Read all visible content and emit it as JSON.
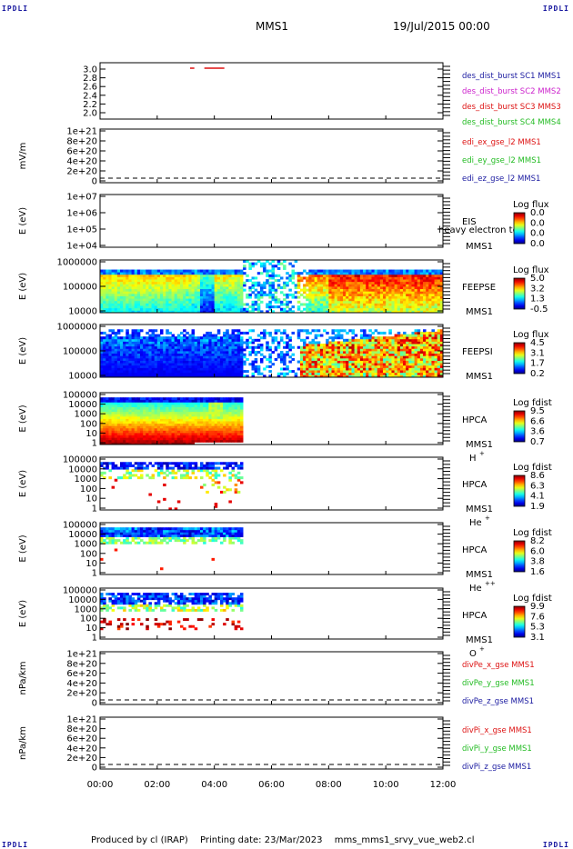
{
  "corner_label": "IPDLI",
  "header": {
    "title": "MMS1",
    "date": "19/Jul/2015 00:00"
  },
  "footer": {
    "produced_by": "Produced by cl (IRAP)",
    "printing_date": "Printing date: 23/Mar/2023",
    "script": "mms_mms1_srvy_vue_web2.cl"
  },
  "colors": {
    "axis": "#000000",
    "dashed": "#000000",
    "sc1": "#1a1aa0",
    "sc2": "#cc22cc",
    "sc3": "#dd1111",
    "sc4": "#22bb22",
    "burst_mark": "#dd1111"
  },
  "chart_data": {
    "type": "stacked-timeseries",
    "x_axis": {
      "ticks": [
        "00:00",
        "02:00",
        "04:00",
        "06:00",
        "08:00",
        "10:00",
        "12:00"
      ],
      "range_hours": [
        0,
        12
      ]
    },
    "panels": [
      {
        "id": "burst",
        "ylabel": "",
        "yticks": [
          "3.0",
          "2.8",
          "2.6",
          "2.4",
          "2.2",
          "2.0"
        ],
        "legend": [
          {
            "label": "des_dist_burst SC1 MMS1",
            "color": "#1a1aa0"
          },
          {
            "label": "des_dist_burst SC2 MMS2",
            "color": "#cc22cc"
          },
          {
            "label": "des_dist_burst SC3 MMS3",
            "color": "#dd1111"
          },
          {
            "label": "des_dist_burst SC4 MMS4",
            "color": "#22bb22"
          }
        ],
        "bursts_hours": [
          [
            3.15,
            3.3
          ],
          [
            3.65,
            4.35
          ]
        ]
      },
      {
        "id": "efield",
        "ylabel": "mV/m",
        "yticks": [
          "1e+21",
          "8e+20",
          "6e+20",
          "4e+20",
          "2e+20",
          "0"
        ],
        "legend": [
          {
            "label": "edi_ex_gse_l2 MMS1",
            "color": "#dd1111"
          },
          {
            "label": "edi_ey_gse_l2 MMS1",
            "color": "#22bb22"
          },
          {
            "label": "edi_ez_gse_l2 MMS1",
            "color": "#1a1aa0"
          }
        ]
      },
      {
        "id": "eis",
        "ylabel": "E (eV)",
        "yticks": [
          "1e+07",
          "1e+06",
          "1e+05",
          "1e+04"
        ],
        "instrument": "EIS",
        "instrument_sub": "MMS1",
        "extra_label": "heavy electron to",
        "colorbar_title": "Log flux",
        "colorbar_ticks": [
          "0.0",
          "0.0",
          "0.0",
          "0.0"
        ]
      },
      {
        "id": "feepse",
        "ylabel": "E (eV)",
        "yticks": [
          "1000000",
          "100000",
          "10000"
        ],
        "instrument": "FEEPSE",
        "instrument_sub": "MMS1",
        "colorbar_title": "Log flux",
        "colorbar_ticks": [
          "5.0",
          "3.2",
          "1.3",
          "-0.5"
        ]
      },
      {
        "id": "feepsi",
        "ylabel": "E (eV)",
        "yticks": [
          "1000000",
          "100000",
          "10000"
        ],
        "instrument": "FEEPSI",
        "instrument_sub": "MMS1",
        "colorbar_title": "Log flux",
        "colorbar_ticks": [
          "4.5",
          "3.1",
          "1.7",
          "0.2"
        ]
      },
      {
        "id": "hpca_h",
        "ylabel": "E (eV)",
        "yticks": [
          "100000",
          "10000",
          "1000",
          "100",
          "10",
          "1"
        ],
        "instrument": "HPCA",
        "instrument_sub": "MMS1",
        "species": "H",
        "species_sup": "+",
        "colorbar_title": "Log fdist",
        "colorbar_ticks": [
          "9.5",
          "6.6",
          "3.6",
          "0.7"
        ]
      },
      {
        "id": "hpca_he",
        "ylabel": "E (eV)",
        "yticks": [
          "100000",
          "10000",
          "1000",
          "100",
          "10",
          "1"
        ],
        "instrument": "HPCA",
        "instrument_sub": "MMS1",
        "species": "He",
        "species_sup": "+",
        "colorbar_title": "Log fdist",
        "colorbar_ticks": [
          "8.6",
          "6.3",
          "4.1",
          "1.9"
        ]
      },
      {
        "id": "hpca_hepp",
        "ylabel": "E (eV)",
        "yticks": [
          "100000",
          "10000",
          "1000",
          "100",
          "10",
          "1"
        ],
        "instrument": "HPCA",
        "instrument_sub": "MMS1",
        "species": "He",
        "species_sup": "++",
        "colorbar_title": "Log fdist",
        "colorbar_ticks": [
          "8.2",
          "6.0",
          "3.8",
          "1.6"
        ]
      },
      {
        "id": "hpca_o",
        "ylabel": "E (eV)",
        "yticks": [
          "100000",
          "10000",
          "1000",
          "100",
          "10",
          "1"
        ],
        "instrument": "HPCA",
        "instrument_sub": "MMS1",
        "species": "O",
        "species_sup": "+",
        "colorbar_title": "Log fdist",
        "colorbar_ticks": [
          "9.9",
          "7.6",
          "5.3",
          "3.1"
        ]
      },
      {
        "id": "divpe",
        "ylabel": "nPa/km",
        "yticks": [
          "1e+21",
          "8e+20",
          "6e+20",
          "4e+20",
          "2e+20",
          "0"
        ],
        "legend": [
          {
            "label": "divPe_x_gse MMS1",
            "color": "#dd1111"
          },
          {
            "label": "divPe_y_gse MMS1",
            "color": "#22bb22"
          },
          {
            "label": "divPe_z_gse MMS1",
            "color": "#1a1aa0"
          }
        ]
      },
      {
        "id": "divpi",
        "ylabel": "nPa/km",
        "yticks": [
          "1e+21",
          "8e+20",
          "6e+20",
          "4e+20",
          "2e+20",
          "0"
        ],
        "legend": [
          {
            "label": "divPi_x_gse MMS1",
            "color": "#dd1111"
          },
          {
            "label": "divPi_y_gse MMS1",
            "color": "#22bb22"
          },
          {
            "label": "divPi_z_gse MMS1",
            "color": "#1a1aa0"
          }
        ]
      }
    ]
  }
}
